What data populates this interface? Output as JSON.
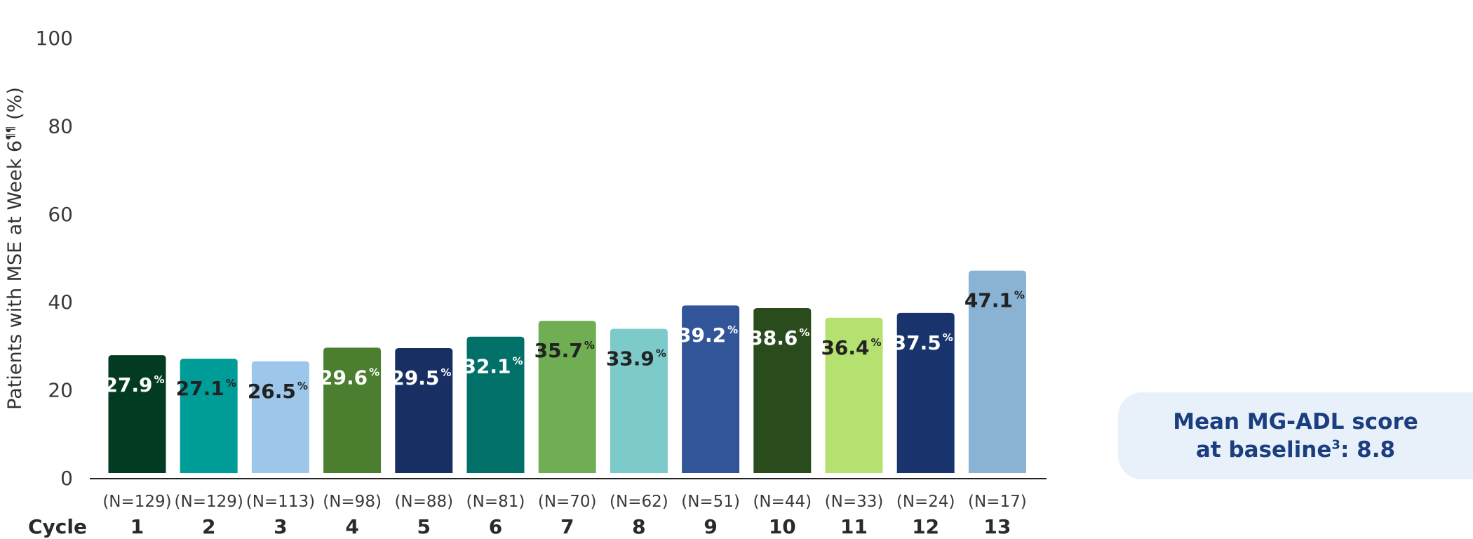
{
  "chart_data": {
    "type": "bar",
    "ylabel": "Patients with MSE at Week 6",
    "ylabel_sup": "¶¶",
    "ylabel_unit": "(%)",
    "ylim": [
      0,
      100
    ],
    "yticks": [
      "0",
      "20",
      "40",
      "60",
      "80",
      "100"
    ],
    "x_title": "Cycle",
    "categories": [
      "1",
      "2",
      "3",
      "4",
      "5",
      "6",
      "7",
      "8",
      "9",
      "10",
      "11",
      "12",
      "13"
    ],
    "n_labels": [
      "(N=129)",
      "(N=129)",
      "(N=113)",
      "(N=98)",
      "(N=88)",
      "(N=81)",
      "(N=70)",
      "(N=62)",
      "(N=51)",
      "(N=44)",
      "(N=33)",
      "(N=24)",
      "(N=17)"
    ],
    "values": [
      27.9,
      27.1,
      26.5,
      29.6,
      29.5,
      32.1,
      35.7,
      33.9,
      39.2,
      38.6,
      36.4,
      37.5,
      47.1
    ],
    "value_labels": [
      "27.9",
      "27.1",
      "26.5",
      "29.6",
      "29.5",
      "32.1",
      "35.7",
      "33.9",
      "39.2",
      "38.6",
      "36.4",
      "37.5",
      "47.1"
    ],
    "value_suffix": "%",
    "bar_colors": [
      "#033b22",
      "#009c98",
      "#9dc7ea",
      "#4b7e2f",
      "#182f63",
      "#007068",
      "#6fae53",
      "#7ccbca",
      "#32559a",
      "#2a4c1c",
      "#b4e170",
      "#19346d",
      "#8ab3d3"
    ],
    "label_colors": [
      "#ffffff",
      "#222222",
      "#222222",
      "#ffffff",
      "#ffffff",
      "#ffffff",
      "#222222",
      "#222222",
      "#ffffff",
      "#ffffff",
      "#222222",
      "#ffffff",
      "#222222"
    ],
    "grid": false
  },
  "callout": {
    "line1": "Mean MG-ADL score",
    "line2_prefix": "at baseline",
    "line2_sup": "3",
    "line2_suffix": ": 8.8"
  }
}
